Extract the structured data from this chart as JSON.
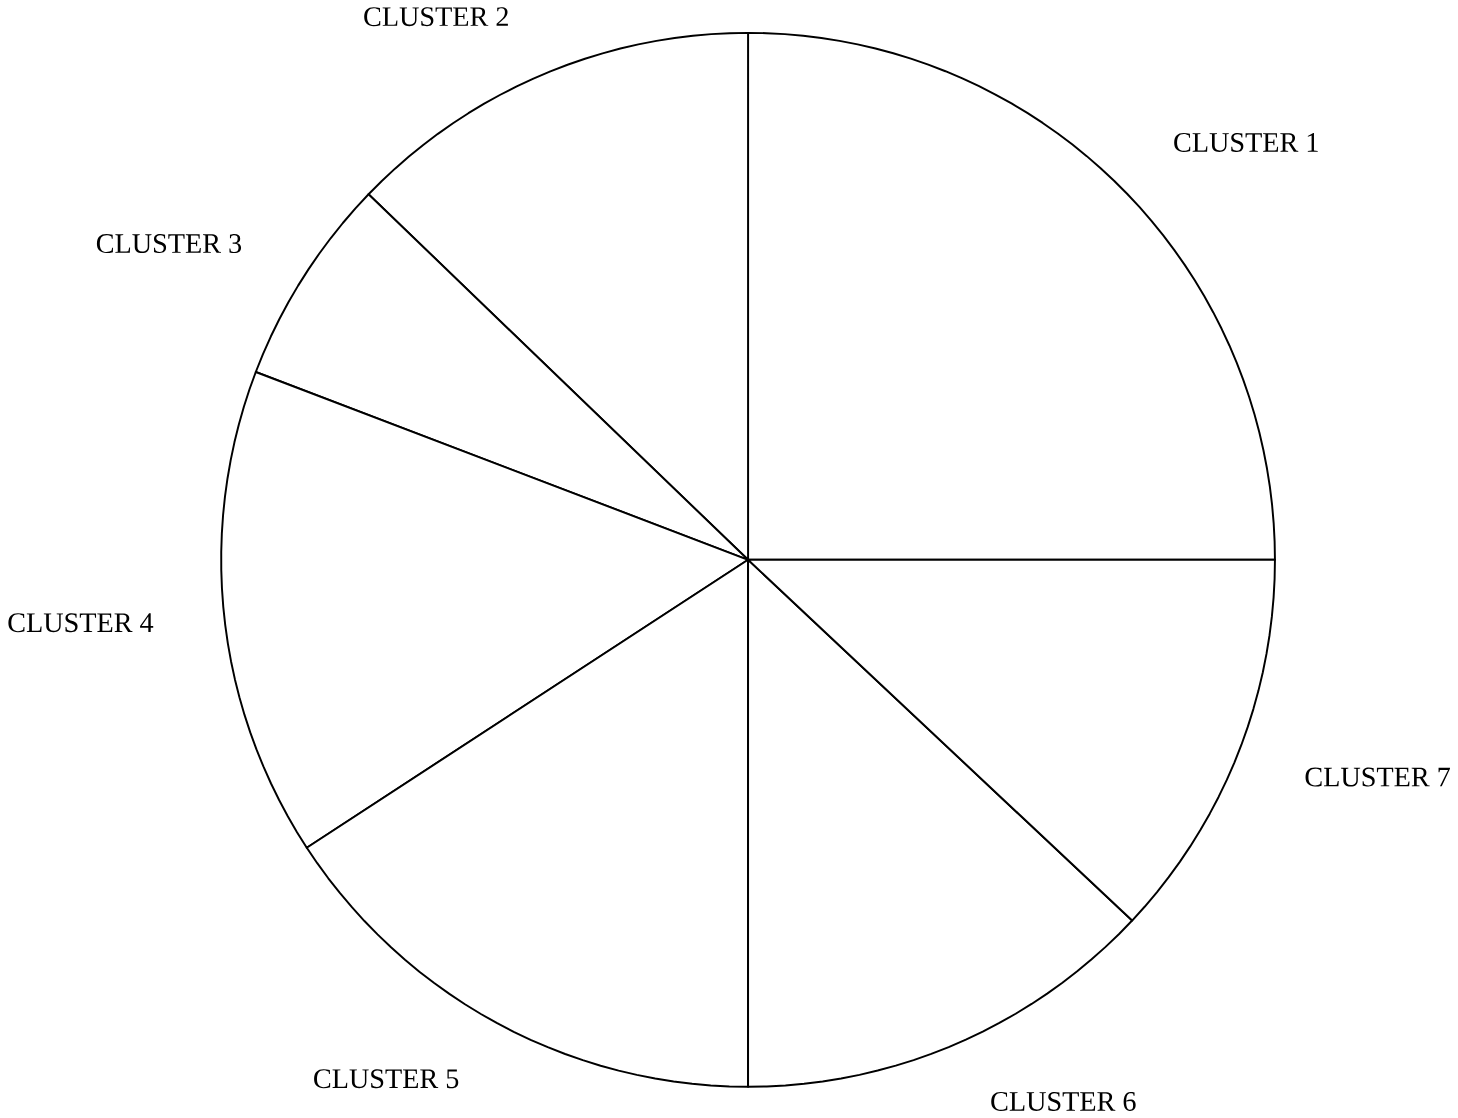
{
  "chart_data": {
    "type": "pie",
    "categories": [
      "CLUSTER 1",
      "CLUSTER 2",
      "CLUSTER 3",
      "CLUSTER 4",
      "CLUSTER 5",
      "CLUSTER 6",
      "CLUSTER 7"
    ],
    "values": [
      25,
      12.8,
      6.4,
      15,
      15.8,
      13,
      12
    ],
    "colors": [
      "#ffffff",
      "#ffffff",
      "#ffffff",
      "#ffffff",
      "#ffffff",
      "#ffffff",
      "#ffffff"
    ],
    "legend": false
  }
}
